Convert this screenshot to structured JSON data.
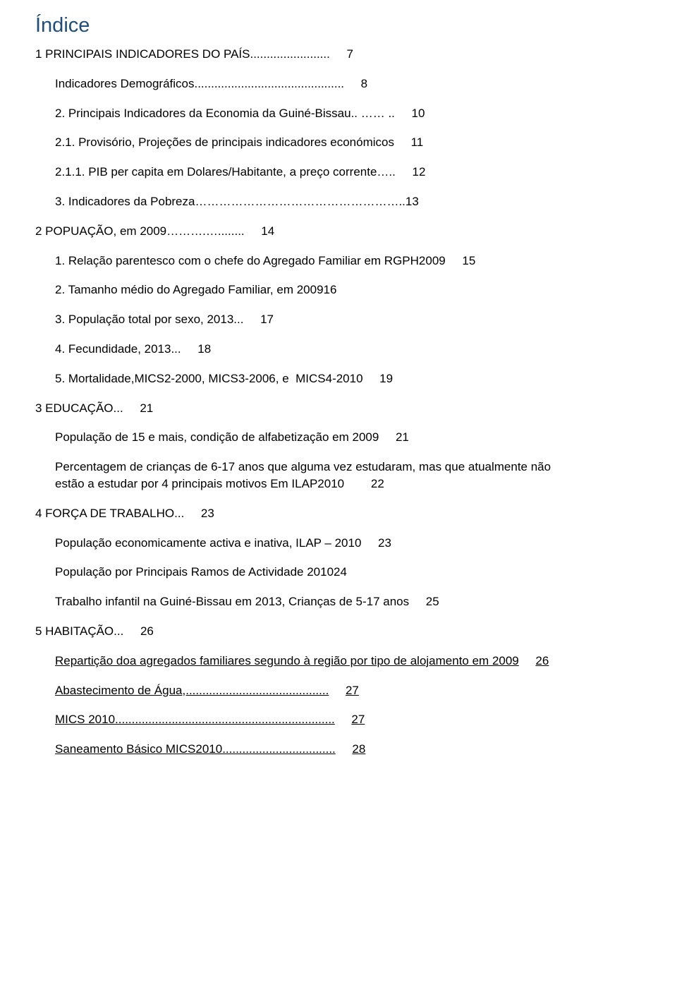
{
  "title": "Índice",
  "colors": {
    "title_color": "#1f4e79",
    "text_color": "#000000",
    "background": "#ffffff"
  },
  "typography": {
    "title_fontsize": 29,
    "body_fontsize": 17,
    "font_family": "Arial"
  },
  "entries": [
    {
      "text": "1 PRINCIPAIS INDICADORES DO PAÍS........................",
      "page": "7",
      "indent": false,
      "gap": false,
      "underlined": false
    },
    {
      "text": "Indicadores Demográficos.............................................",
      "page": "8",
      "indent": true,
      "gap": true,
      "underlined": false
    },
    {
      "text": "2. Principais Indicadores da Economia da Guiné-Bissau.. …… ..",
      "page": "10",
      "indent": true,
      "gap": true,
      "underlined": false
    },
    {
      "text": "2.1. Provisório, Projeções de principais indicadores económicos",
      "page": "11",
      "indent": true,
      "gap": true,
      "underlined": false
    },
    {
      "text": "2.1.1. PIB per capita em Dolares/Habitante, a preço corrente…..",
      "page": "12",
      "indent": true,
      "gap": true,
      "underlined": false
    },
    {
      "text": "3. Indicadores da Pobreza……………………………………………..13",
      "page": "",
      "indent": true,
      "gap": true,
      "underlined": false
    },
    {
      "text": "2 POPUAÇÃO, em 2009……….…........",
      "page": "14",
      "indent": false,
      "gap": true,
      "underlined": false
    },
    {
      "text": "1. Relação parentesco com o chefe do Agregado Familiar em RGPH2009",
      "page": "15",
      "indent": true,
      "gap": true,
      "underlined": false
    },
    {
      "text": "2. Tamanho médio do Agregado Familiar, em 200916",
      "page": "",
      "indent": true,
      "gap": true,
      "underlined": false
    },
    {
      "text": "3. População total por sexo, 2013...",
      "page": "17",
      "indent": true,
      "gap": true,
      "underlined": false
    },
    {
      "text": "4. Fecundidade, 2013...",
      "page": "18",
      "indent": true,
      "gap": true,
      "underlined": false
    },
    {
      "text": "5. Mortalidade,MICS2-2000, MICS3-2006, e  MICS4-2010",
      "page": "19",
      "indent": true,
      "gap": true,
      "underlined": false
    },
    {
      "text": "3 EDUCAÇÃO...",
      "page": "21",
      "indent": false,
      "gap": true,
      "underlined": false
    },
    {
      "text": "População de 15 e mais, condição de alfabetização em 2009",
      "page": "21",
      "indent": true,
      "gap": true,
      "underlined": false
    },
    {
      "text_line1": "Percentagem de crianças de 6-17 anos que alguma vez estudaram, mas que atualmente não",
      "text_line2": "estão a estudar por 4 principais motivos Em ILAP2010",
      "page": "22",
      "indent": true,
      "gap": true,
      "underlined": false,
      "multiline": true
    },
    {
      "text": "4 FORÇA DE TRABALHO...",
      "page": "23",
      "indent": false,
      "gap": true,
      "underlined": false
    },
    {
      "text": "População economicamente activa e inativa, ILAP – 2010",
      "page": "23",
      "indent": true,
      "gap": true,
      "underlined": false
    },
    {
      "text": "População por Principais Ramos de Actividade 201024",
      "page": "",
      "indent": true,
      "gap": true,
      "underlined": false
    },
    {
      "text": "Trabalho infantil na Guiné-Bissau em 2013, Crianças de 5-17 anos",
      "page": "25",
      "indent": true,
      "gap": true,
      "underlined": false
    },
    {
      "text": "5 HABITAÇÃO...",
      "page": "26",
      "indent": false,
      "gap": true,
      "underlined": false
    },
    {
      "text": "Repartição doa agregados familiares segundo à região por tipo de alojamento em 2009",
      "page": "26",
      "indent": true,
      "gap": true,
      "underlined": true
    },
    {
      "text": "Abastecimento de Água,...........................................",
      "page": "27",
      "indent": true,
      "gap": true,
      "underlined": true
    },
    {
      "text": "MICS 2010..................................................................",
      "page": "27",
      "indent": true,
      "gap": true,
      "underlined": true
    },
    {
      "text": "Saneamento Básico MICS2010..................................",
      "page": "28",
      "indent": true,
      "gap": true,
      "underlined": true
    }
  ]
}
